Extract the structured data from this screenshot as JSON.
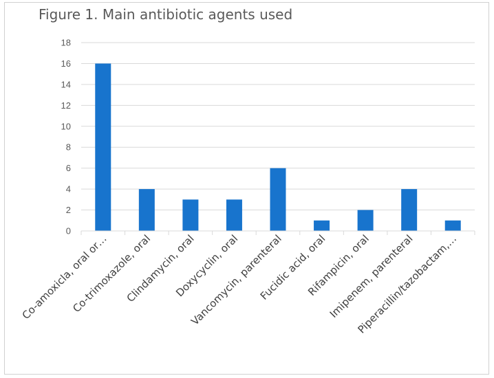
{
  "chart_data": {
    "type": "bar",
    "title": "Figure 1. Main antibiotic agents used",
    "categories": [
      "Co-amoxicla, oral or…",
      "Co-trimoxazole, oral",
      "Clindamycin, oral",
      "Doxycyclin, oral",
      "Vancomycin, parenteral",
      "Fucidic acid, oral",
      "Rifampicin, oral",
      "Imipenem, parenteral",
      "Piperacillin/tazobactam,…"
    ],
    "values": [
      16,
      4,
      3,
      3,
      6,
      1,
      2,
      4,
      1
    ],
    "xlabel": "",
    "ylabel": "",
    "ylim": [
      0,
      18
    ],
    "yticks": [
      "0",
      "2",
      "4",
      "6",
      "8",
      "10",
      "12",
      "14",
      "16",
      "18"
    ],
    "grid": true,
    "legend": "none",
    "bar_color": "#1874cd",
    "grid_color": "#d9d9d9"
  }
}
